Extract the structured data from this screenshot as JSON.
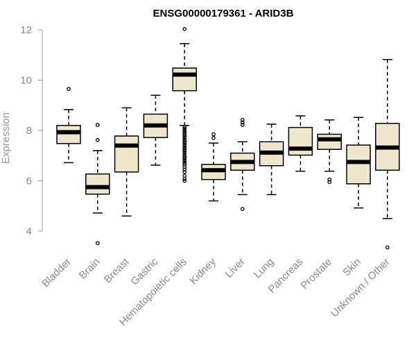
{
  "chart_data": {
    "type": "box",
    "title": "ENSG00000179361 - ARID3B",
    "ylabel": "Expression",
    "xlabel": "",
    "ylim": [
      3.2,
      12.3
    ],
    "yticks": [
      4,
      6,
      8,
      10,
      12
    ],
    "box_color": "#efe6ce",
    "categories": [
      "Bladder",
      "Brain",
      "Breast",
      "Gastric",
      "Hematopoietic cells",
      "Kidney",
      "Liver",
      "Lung",
      "Pancreas",
      "Prostate",
      "Skin",
      "Unknown / Other"
    ],
    "boxes": [
      {
        "whislo": 6.72,
        "q1": 7.48,
        "med": 7.93,
        "q3": 8.2,
        "whishi": 8.83,
        "fliers": [
          9.65
        ]
      },
      {
        "whislo": 4.72,
        "q1": 5.47,
        "med": 5.75,
        "q3": 6.27,
        "whishi": 7.2,
        "fliers": [
          3.52,
          7.62,
          8.22
        ]
      },
      {
        "whislo": 4.6,
        "q1": 6.35,
        "med": 7.4,
        "q3": 7.78,
        "whishi": 8.9,
        "fliers": []
      },
      {
        "whislo": 6.62,
        "q1": 7.72,
        "med": 8.2,
        "q3": 8.65,
        "whishi": 9.4,
        "fliers": []
      },
      {
        "whislo": 8.2,
        "q1": 9.58,
        "med": 10.22,
        "q3": 10.48,
        "whishi": 11.45,
        "fliers": [
          12.03,
          8.15,
          8.08,
          8.0,
          7.92,
          7.85,
          7.78,
          7.7,
          7.62,
          7.55,
          7.48,
          7.4,
          7.32,
          7.25,
          7.18,
          7.1,
          7.02,
          6.95,
          6.88,
          6.8,
          6.72,
          6.65,
          6.55,
          6.45,
          6.35,
          6.2,
          6.08,
          6.0
        ]
      },
      {
        "whislo": 5.2,
        "q1": 6.05,
        "med": 6.42,
        "q3": 6.65,
        "whishi": 7.5,
        "fliers": [
          7.7,
          7.85
        ]
      },
      {
        "whislo": 5.45,
        "q1": 6.42,
        "med": 6.75,
        "q3": 7.1,
        "whishi": 7.55,
        "fliers": [
          4.88,
          8.22,
          8.32,
          8.42
        ]
      },
      {
        "whislo": 5.45,
        "q1": 6.6,
        "med": 7.12,
        "q3": 7.55,
        "whishi": 8.25,
        "fliers": []
      },
      {
        "whislo": 6.38,
        "q1": 7.02,
        "med": 7.28,
        "q3": 8.12,
        "whishi": 8.58,
        "fliers": []
      },
      {
        "whislo": 6.38,
        "q1": 7.25,
        "med": 7.65,
        "q3": 7.85,
        "whishi": 8.42,
        "fliers": [
          5.95,
          6.05
        ]
      },
      {
        "whislo": 4.92,
        "q1": 5.88,
        "med": 6.75,
        "q3": 7.42,
        "whishi": 8.52,
        "fliers": []
      },
      {
        "whislo": 4.5,
        "q1": 6.42,
        "med": 7.32,
        "q3": 8.28,
        "whishi": 10.82,
        "fliers": [
          3.35
        ]
      }
    ]
  }
}
